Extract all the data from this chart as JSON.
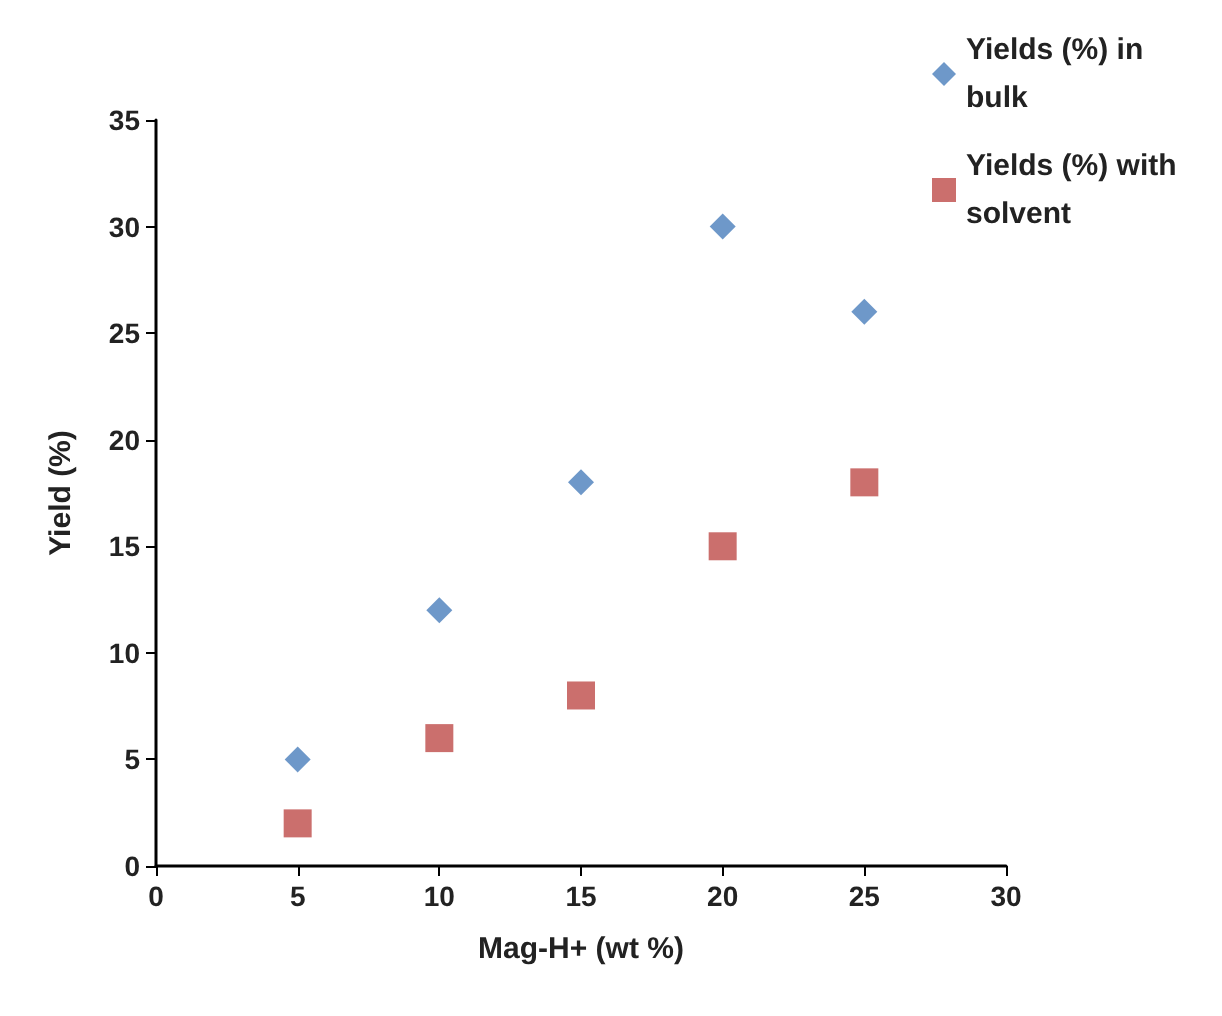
{
  "chart_data": {
    "type": "scatter",
    "xlabel": "Mag-H+ (wt %)",
    "ylabel": "Yield (%)",
    "x": [
      5,
      10,
      15,
      20,
      25
    ],
    "series": [
      {
        "name": "Yields (%) in bulk",
        "color": "#4a7ebb",
        "marker": "diamond",
        "values": [
          5,
          12,
          18,
          30,
          26
        ]
      },
      {
        "name": "Yields (%) with solvent",
        "color": "#be4b48",
        "marker": "square",
        "values": [
          2,
          6,
          8,
          15,
          18
        ]
      }
    ],
    "xlim": [
      0,
      30
    ],
    "xticks": [
      0,
      5,
      10,
      15,
      20,
      25,
      30
    ],
    "ylim": [
      0,
      35
    ],
    "yticks": [
      0,
      5,
      10,
      15,
      20,
      25,
      30,
      35
    ],
    "grid": false,
    "legend": "top right"
  }
}
